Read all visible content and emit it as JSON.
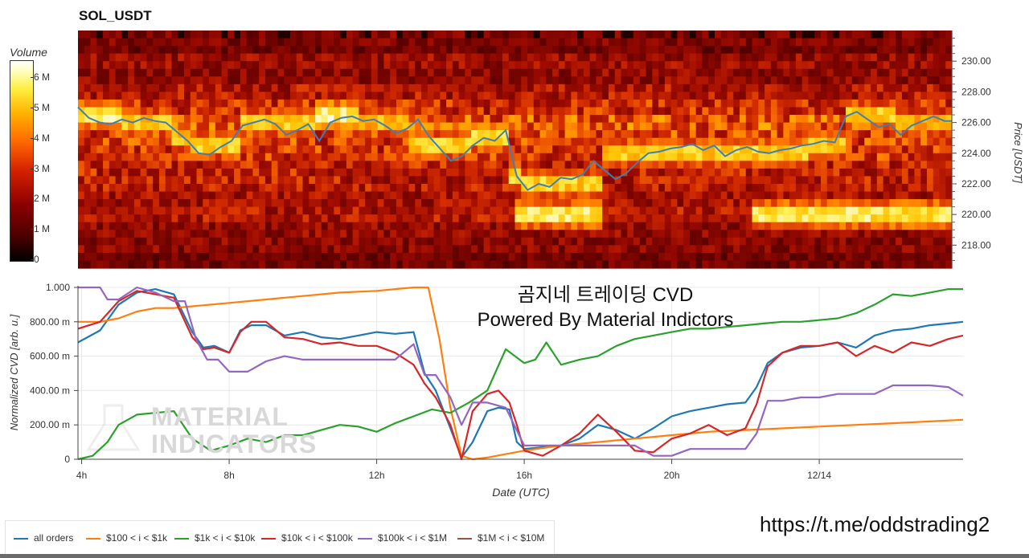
{
  "heatmap": {
    "title": "SOL_USDT",
    "colorbar_label": "Volume",
    "colorbar_ticks": [
      "6 M",
      "5 M",
      "4 M",
      "3 M",
      "2 M",
      "1 M",
      "0"
    ],
    "y_axis_label": "Price [USDT]",
    "y_ticks": [
      "230.00",
      "228.00",
      "226.00",
      "224.00",
      "222.00",
      "220.00",
      "218.00"
    ],
    "colormap": [
      "#000000",
      "#5a0000",
      "#9b0a00",
      "#d42c00",
      "#ff7800",
      "#ffc000",
      "#ffee50",
      "#ffffff"
    ]
  },
  "chart_data": [
    {
      "type": "heatmap",
      "title": "SOL_USDT",
      "x_range": [
        "04:00",
        "17:55"
      ],
      "ylim": [
        216.5,
        232.0
      ],
      "ylabel": "Price [USDT]",
      "colorbar": "Volume",
      "colorbar_range": [
        0,
        6500000
      ],
      "bands": [
        {
          "price": 231.5,
          "level": 0.25
        },
        {
          "price": 231.0,
          "level": 0.22
        },
        {
          "price": 230.0,
          "level": 0.32
        },
        {
          "price": 229.0,
          "level": 0.3
        },
        {
          "price": 228.0,
          "level": 0.38
        },
        {
          "price": 227.0,
          "level": 0.45
        },
        {
          "price": 226.0,
          "level": 0.55
        },
        {
          "price": 225.0,
          "level": 0.5
        },
        {
          "price": 224.0,
          "level": 0.48
        },
        {
          "price": 223.0,
          "level": 0.42
        },
        {
          "price": 222.0,
          "level": 0.4
        },
        {
          "price": 221.0,
          "level": 0.35
        },
        {
          "price": 220.0,
          "level": 0.38
        },
        {
          "price": 219.0,
          "level": 0.3
        },
        {
          "price": 218.0,
          "level": 0.28
        },
        {
          "price": 217.0,
          "level": 0.22
        }
      ],
      "hot_zones": [
        {
          "from": 4.0,
          "to": 5.2,
          "price": 226.5,
          "level": 0.92
        },
        {
          "from": 5.2,
          "to": 6.6,
          "price": 226.0,
          "level": 0.8
        },
        {
          "from": 6.6,
          "to": 7.1,
          "price": 225.0,
          "level": 0.78
        },
        {
          "from": 7.1,
          "to": 8.5,
          "price": 224.5,
          "level": 0.82
        },
        {
          "from": 8.5,
          "to": 10.5,
          "price": 226.0,
          "level": 0.8
        },
        {
          "from": 10.5,
          "to": 11.7,
          "price": 226.5,
          "level": 0.95
        },
        {
          "from": 11.7,
          "to": 13.0,
          "price": 226.0,
          "level": 0.75
        },
        {
          "from": 13.0,
          "to": 14.8,
          "price": 224.5,
          "level": 0.82
        },
        {
          "from": 14.8,
          "to": 15.7,
          "price": 225.0,
          "level": 0.85
        },
        {
          "from": 15.7,
          "to": 16.1,
          "price": 222.5,
          "level": 0.88
        },
        {
          "from": 16.1,
          "to": 18.3,
          "price": 222.0,
          "level": 0.82
        },
        {
          "from": 15.9,
          "to": 18.3,
          "price": 220.0,
          "level": 0.9
        },
        {
          "from": 18.3,
          "to": 20.5,
          "price": 224.0,
          "level": 0.8
        },
        {
          "from": 20.5,
          "to": 24.0,
          "price": 224.0,
          "level": 0.82
        },
        {
          "from": 22.5,
          "to": 27.9,
          "price": 220.0,
          "level": 0.9
        },
        {
          "from": 24.0,
          "to": 25.0,
          "price": 224.5,
          "level": 0.78
        },
        {
          "from": 25.0,
          "to": 26.3,
          "price": 226.5,
          "level": 0.82
        },
        {
          "from": 26.3,
          "to": 27.9,
          "price": 226.0,
          "level": 0.72
        }
      ],
      "price_line": {
        "x": [
          4.0,
          4.3,
          4.6,
          4.9,
          5.2,
          5.5,
          5.8,
          6.1,
          6.4,
          6.7,
          7.0,
          7.3,
          7.6,
          7.9,
          8.2,
          8.5,
          8.8,
          9.1,
          9.4,
          9.7,
          10.0,
          10.3,
          10.6,
          10.9,
          11.2,
          11.5,
          11.8,
          12.1,
          12.4,
          12.7,
          13.0,
          13.3,
          13.6,
          13.9,
          14.2,
          14.5,
          14.8,
          15.1,
          15.4,
          15.7,
          16.0,
          16.3,
          16.6,
          16.9,
          17.2,
          17.5,
          17.8,
          18.1,
          18.4,
          18.7,
          19.0,
          19.3,
          19.6,
          19.9,
          20.2,
          20.5,
          20.8,
          21.1,
          21.4,
          21.7,
          22.0,
          22.3,
          22.6,
          22.9,
          23.2,
          23.5,
          23.8,
          24.1,
          24.4,
          24.7,
          25.0,
          25.3,
          25.6,
          25.9,
          26.2,
          26.5,
          26.8,
          27.1,
          27.4,
          27.7,
          27.9
        ],
        "y": [
          227.0,
          226.3,
          226.0,
          225.9,
          226.2,
          226.0,
          226.3,
          226.1,
          226.0,
          225.4,
          224.8,
          224.0,
          223.9,
          224.4,
          224.8,
          225.8,
          226.0,
          226.2,
          225.9,
          225.2,
          225.5,
          225.9,
          224.8,
          226.0,
          226.3,
          226.4,
          226.1,
          226.2,
          225.8,
          225.3,
          225.6,
          226.2,
          225.1,
          224.3,
          223.5,
          223.8,
          224.5,
          225.0,
          224.8,
          225.5,
          222.5,
          221.6,
          222.0,
          221.8,
          222.4,
          222.3,
          222.6,
          223.5,
          222.9,
          222.3,
          222.7,
          223.4,
          224.0,
          224.1,
          224.3,
          224.4,
          224.6,
          224.2,
          224.5,
          223.8,
          224.2,
          224.4,
          224.1,
          224.0,
          224.2,
          224.3,
          224.5,
          224.6,
          224.8,
          224.7,
          226.4,
          226.7,
          226.2,
          225.7,
          225.9,
          225.2,
          225.8,
          226.1,
          226.4,
          226.1,
          226.1
        ]
      }
    },
    {
      "type": "line",
      "title": "곰지네 트레이딩 CVD",
      "subtitle": "Powered By Material Indictors",
      "xlabel": "Date (UTC)",
      "ylabel": "Normalized CVD [arb. u.]",
      "x_ticks": [
        "4h",
        "8h",
        "12h",
        "16h",
        "20h",
        "12/14"
      ],
      "y_ticks": [
        "1.000",
        "800.00 m",
        "600.00 m",
        "400.00 m",
        "200.00 m",
        "0"
      ],
      "ylim": [
        0,
        1
      ],
      "xlim": [
        3.9,
        27.9
      ],
      "grid": true,
      "legend": "bottom",
      "series": [
        {
          "name": "all orders",
          "color": "#1f77b4",
          "x": [
            3.9,
            4.5,
            5.0,
            5.5,
            6.0,
            6.5,
            7.0,
            7.3,
            7.6,
            8.0,
            8.3,
            8.6,
            9.0,
            9.5,
            10.0,
            10.5,
            11.0,
            11.5,
            12.0,
            12.5,
            13.0,
            13.3,
            13.6,
            14.0,
            14.3,
            14.6,
            15.0,
            15.3,
            15.6,
            15.8,
            16.0,
            16.5,
            17.0,
            17.5,
            18.0,
            18.5,
            19.0,
            19.5,
            20.0,
            20.5,
            21.0,
            21.5,
            22.0,
            22.3,
            22.6,
            23.0,
            23.5,
            24.0,
            24.5,
            25.0,
            25.5,
            26.0,
            26.5,
            27.0,
            27.5,
            27.9
          ],
          "y": [
            0.68,
            0.75,
            0.9,
            0.97,
            0.99,
            0.96,
            0.74,
            0.65,
            0.66,
            0.62,
            0.75,
            0.78,
            0.78,
            0.72,
            0.74,
            0.71,
            0.7,
            0.72,
            0.74,
            0.73,
            0.74,
            0.5,
            0.4,
            0.18,
            0.01,
            0.1,
            0.28,
            0.3,
            0.29,
            0.1,
            0.06,
            0.07,
            0.08,
            0.12,
            0.2,
            0.17,
            0.12,
            0.18,
            0.25,
            0.28,
            0.3,
            0.32,
            0.33,
            0.42,
            0.56,
            0.62,
            0.65,
            0.66,
            0.68,
            0.65,
            0.72,
            0.75,
            0.76,
            0.78,
            0.79,
            0.8
          ]
        },
        {
          "name": "$100 < i < $1k",
          "color": "#ff7f0e",
          "x": [
            3.9,
            4.5,
            5.0,
            5.5,
            6.0,
            6.5,
            7.0,
            8.0,
            9.0,
            10.0,
            11.0,
            12.0,
            12.5,
            13.0,
            13.4,
            13.7,
            14.0,
            14.3,
            14.6,
            15.0,
            15.5,
            16.0,
            17.0,
            18.0,
            19.0,
            20.0,
            21.0,
            22.0,
            23.0,
            24.0,
            25.0,
            26.0,
            27.0,
            27.9
          ],
          "y": [
            0.8,
            0.8,
            0.82,
            0.86,
            0.88,
            0.88,
            0.89,
            0.91,
            0.93,
            0.95,
            0.97,
            0.98,
            0.99,
            1.0,
            1.0,
            0.7,
            0.3,
            0.02,
            0.0,
            0.01,
            0.03,
            0.05,
            0.08,
            0.1,
            0.12,
            0.14,
            0.16,
            0.17,
            0.18,
            0.19,
            0.2,
            0.21,
            0.22,
            0.23
          ]
        },
        {
          "name": "$1k < i < $10k",
          "color": "#2ca02c",
          "x": [
            3.9,
            4.3,
            4.7,
            5.0,
            5.5,
            6.0,
            6.5,
            7.0,
            7.5,
            8.0,
            8.5,
            9.0,
            9.5,
            10.0,
            10.5,
            11.0,
            11.5,
            12.0,
            12.5,
            13.0,
            13.5,
            14.0,
            14.5,
            15.0,
            15.5,
            16.0,
            16.3,
            16.6,
            17.0,
            17.5,
            18.0,
            18.5,
            19.0,
            19.5,
            20.0,
            20.5,
            21.0,
            21.5,
            22.0,
            22.5,
            23.0,
            23.5,
            24.0,
            24.5,
            25.0,
            25.5,
            26.0,
            26.5,
            27.0,
            27.5,
            27.9
          ],
          "y": [
            0.0,
            0.02,
            0.1,
            0.2,
            0.26,
            0.27,
            0.28,
            0.12,
            0.05,
            0.08,
            0.12,
            0.1,
            0.14,
            0.14,
            0.17,
            0.2,
            0.19,
            0.16,
            0.21,
            0.25,
            0.29,
            0.27,
            0.33,
            0.4,
            0.64,
            0.56,
            0.58,
            0.68,
            0.55,
            0.58,
            0.6,
            0.66,
            0.7,
            0.72,
            0.74,
            0.76,
            0.76,
            0.77,
            0.78,
            0.79,
            0.8,
            0.8,
            0.81,
            0.82,
            0.85,
            0.9,
            0.96,
            0.95,
            0.97,
            0.99,
            0.99
          ]
        },
        {
          "name": "$10k < i < $100k",
          "color": "#d62728",
          "x": [
            3.9,
            4.5,
            5.0,
            5.5,
            6.0,
            6.5,
            7.0,
            7.3,
            7.6,
            8.0,
            8.3,
            8.6,
            9.0,
            9.5,
            10.0,
            10.5,
            11.0,
            11.5,
            12.0,
            12.5,
            13.0,
            13.3,
            13.6,
            14.0,
            14.3,
            14.6,
            15.0,
            15.3,
            15.6,
            15.8,
            16.0,
            16.5,
            17.0,
            17.5,
            18.0,
            18.5,
            19.0,
            19.5,
            20.0,
            20.5,
            21.0,
            21.5,
            22.0,
            22.3,
            22.6,
            23.0,
            23.5,
            24.0,
            24.5,
            25.0,
            25.5,
            26.0,
            26.5,
            27.0,
            27.5,
            27.9
          ],
          "y": [
            0.76,
            0.8,
            0.92,
            0.98,
            0.96,
            0.94,
            0.71,
            0.64,
            0.65,
            0.62,
            0.74,
            0.8,
            0.8,
            0.71,
            0.7,
            0.67,
            0.68,
            0.66,
            0.66,
            0.62,
            0.55,
            0.44,
            0.36,
            0.2,
            0.0,
            0.28,
            0.38,
            0.4,
            0.33,
            0.2,
            0.05,
            0.02,
            0.08,
            0.15,
            0.26,
            0.16,
            0.05,
            0.04,
            0.12,
            0.15,
            0.2,
            0.14,
            0.18,
            0.32,
            0.54,
            0.62,
            0.66,
            0.66,
            0.68,
            0.6,
            0.66,
            0.62,
            0.68,
            0.66,
            0.7,
            0.72
          ]
        },
        {
          "name": "$100k < i < $1M",
          "color": "#9467bd",
          "x": [
            3.9,
            4.5,
            4.7,
            5.0,
            5.5,
            6.0,
            6.5,
            6.8,
            7.1,
            7.4,
            7.7,
            8.0,
            8.5,
            9.0,
            9.5,
            10.0,
            10.5,
            11.0,
            11.5,
            12.0,
            12.5,
            13.0,
            13.3,
            13.6,
            14.0,
            14.3,
            14.6,
            15.0,
            15.5,
            16.0,
            16.5,
            17.0,
            18.0,
            18.5,
            19.0,
            19.5,
            20.0,
            20.5,
            21.0,
            21.5,
            22.0,
            22.3,
            22.6,
            23.0,
            23.5,
            24.0,
            24.5,
            25.0,
            25.5,
            26.0,
            26.5,
            27.0,
            27.5,
            27.9
          ],
          "y": [
            1.0,
            1.0,
            0.93,
            0.93,
            1.0,
            0.97,
            0.92,
            0.92,
            0.7,
            0.58,
            0.58,
            0.51,
            0.51,
            0.57,
            0.6,
            0.58,
            0.58,
            0.58,
            0.58,
            0.58,
            0.58,
            0.67,
            0.49,
            0.49,
            0.36,
            0.2,
            0.33,
            0.33,
            0.3,
            0.08,
            0.08,
            0.08,
            0.08,
            0.08,
            0.08,
            0.02,
            0.02,
            0.06,
            0.06,
            0.06,
            0.06,
            0.15,
            0.34,
            0.34,
            0.36,
            0.36,
            0.38,
            0.38,
            0.38,
            0.43,
            0.43,
            0.43,
            0.42,
            0.37
          ]
        },
        {
          "name": "$1M < i < $10M",
          "color": "#8c564b",
          "x": [],
          "y": []
        }
      ]
    }
  ],
  "overlay": {
    "title": "곰지네 트레이딩 CVD",
    "subtitle": "Powered By Material Indictors"
  },
  "watermark": {
    "line1": "MATERIAL",
    "line2": "INDICATORS"
  },
  "cvd_axes": {
    "xlabel": "Date (UTC)",
    "ylabel": "Normalized CVD [arb. u.]"
  },
  "legend": [
    {
      "label": "all orders",
      "color": "#1f77b4"
    },
    {
      "label": "$100 < i < $1k",
      "color": "#ff7f0e"
    },
    {
      "label": "$1k < i < $10k",
      "color": "#2ca02c"
    },
    {
      "label": "$10k < i < $100k",
      "color": "#d62728"
    },
    {
      "label": "$100k < i < $1M",
      "color": "#9467bd"
    },
    {
      "label": "$1M < i < $10M",
      "color": "#8c564b"
    }
  ],
  "link": "https://t.me/oddstrading2"
}
